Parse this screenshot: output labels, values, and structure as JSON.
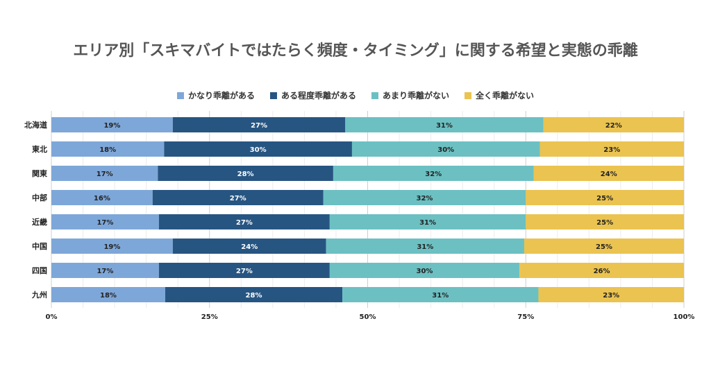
{
  "chart_data": {
    "type": "bar",
    "orientation": "horizontal",
    "stacked": true,
    "title": "エリア別「スキマバイトではたらく頻度・タイミング」に関する希望と実態の乖離",
    "legend_position": "top",
    "grid": true,
    "xlim": [
      0,
      100
    ],
    "x_ticks": [
      "0%",
      "25%",
      "50%",
      "75%",
      "100%"
    ],
    "categories": [
      "北海道",
      "東北",
      "関東",
      "中部",
      "近畿",
      "中国",
      "四国",
      "九州"
    ],
    "series": [
      {
        "name": "かなり乖離がある",
        "color": "#7ea7d9",
        "label_color": "#222222",
        "values": [
          19,
          18,
          17,
          16,
          17,
          19,
          17,
          18
        ],
        "labels": [
          "19%",
          "18%",
          "17%",
          "16%",
          "17%",
          "19%",
          "17%",
          "18%"
        ]
      },
      {
        "name": "ある程度乖離がある",
        "color": "#275582",
        "label_color": "#ffffff",
        "values": [
          27,
          30,
          28,
          27,
          27,
          24,
          27,
          28
        ],
        "labels": [
          "27%",
          "30%",
          "28%",
          "27%",
          "27%",
          "24%",
          "27%",
          "28%"
        ]
      },
      {
        "name": "あまり乖離がない",
        "color": "#6cc0c2",
        "label_color": "#222222",
        "values": [
          31,
          30,
          32,
          32,
          31,
          31,
          30,
          31
        ],
        "labels": [
          "31%",
          "30%",
          "32%",
          "32%",
          "31%",
          "31%",
          "30%",
          "31%"
        ]
      },
      {
        "name": "全く乖離がない",
        "color": "#ebc350",
        "label_color": "#222222",
        "values": [
          22,
          23,
          24,
          25,
          25,
          25,
          26,
          23
        ],
        "labels": [
          "22%",
          "23%",
          "24%",
          "25%",
          "25%",
          "25%",
          "26%",
          "23%"
        ]
      }
    ]
  }
}
